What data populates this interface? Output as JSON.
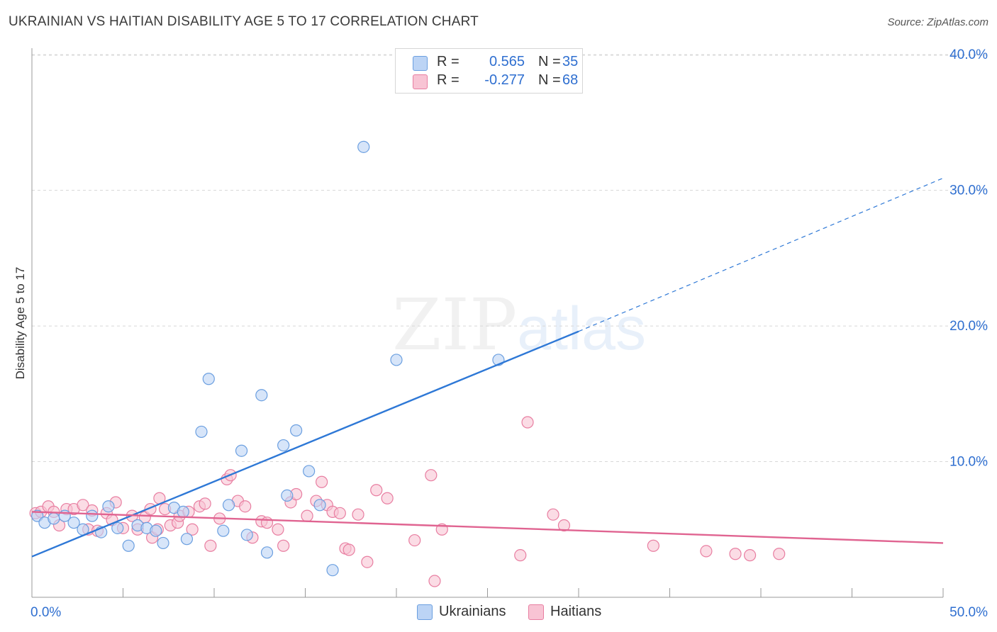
{
  "title": "UKRAINIAN VS HAITIAN DISABILITY AGE 5 TO 17 CORRELATION CHART",
  "source": "Source: ZipAtlas.com",
  "watermark": {
    "zip": "ZIP",
    "atlas": "atlas"
  },
  "legend": {
    "rows": [
      {
        "r_label": "R =",
        "r_value": "0.565",
        "n_label": "N =",
        "n_value": "35"
      },
      {
        "r_label": "R =",
        "r_value": "-0.277",
        "n_label": "N =",
        "n_value": "68"
      }
    ]
  },
  "colors": {
    "ukrainian_fill": "#bcd4f5",
    "ukrainian_stroke": "#6b9fe0",
    "ukrainian_line": "#2e78d6",
    "haitian_fill": "#f8c4d4",
    "haitian_stroke": "#e87ea1",
    "haitian_line": "#e06491",
    "text_blue": "#2f6fd0",
    "grid": "#d8d8d8"
  },
  "chart_data": {
    "type": "scatter",
    "title": "UKRAINIAN VS HAITIAN DISABILITY AGE 5 TO 17 CORRELATION CHART",
    "xlabel": "",
    "ylabel": "Disability Age 5 to 17",
    "xlim": [
      0,
      50
    ],
    "ylim": [
      0,
      41
    ],
    "x_tick_labels": [
      {
        "value": 0,
        "label": "0.0%"
      },
      {
        "value": 50,
        "label": "50.0%"
      }
    ],
    "y_tick_labels": [
      {
        "value": 10,
        "label": "10.0%"
      },
      {
        "value": 20,
        "label": "20.0%"
      },
      {
        "value": 30,
        "label": "30.0%"
      },
      {
        "value": 40,
        "label": "40.0%"
      }
    ],
    "series": [
      {
        "name": "Ukrainians",
        "r": 0.565,
        "n": 35,
        "trend": {
          "x0": 0,
          "y0": 3.0,
          "x1": 30,
          "y1": 19.6,
          "dashed_to_x": 50,
          "dashed_to_y": 30.9
        },
        "points": [
          [
            0.3,
            6.0
          ],
          [
            0.7,
            5.5
          ],
          [
            1.2,
            5.8
          ],
          [
            1.8,
            6.0
          ],
          [
            2.3,
            5.5
          ],
          [
            2.8,
            5.0
          ],
          [
            3.3,
            6.0
          ],
          [
            3.8,
            4.8
          ],
          [
            4.2,
            6.7
          ],
          [
            4.7,
            5.1
          ],
          [
            5.3,
            3.8
          ],
          [
            5.8,
            5.3
          ],
          [
            6.3,
            5.1
          ],
          [
            6.8,
            4.9
          ],
          [
            7.2,
            4.0
          ],
          [
            7.8,
            6.6
          ],
          [
            8.3,
            6.3
          ],
          [
            8.5,
            4.3
          ],
          [
            9.3,
            12.2
          ],
          [
            9.7,
            16.1
          ],
          [
            10.5,
            4.9
          ],
          [
            10.8,
            6.8
          ],
          [
            11.5,
            10.8
          ],
          [
            11.8,
            4.6
          ],
          [
            12.6,
            14.9
          ],
          [
            12.9,
            3.3
          ],
          [
            13.8,
            11.2
          ],
          [
            14.0,
            7.5
          ],
          [
            14.5,
            12.3
          ],
          [
            15.2,
            9.3
          ],
          [
            15.8,
            6.8
          ],
          [
            16.5,
            2.0
          ],
          [
            18.2,
            33.2
          ],
          [
            20.0,
            17.5
          ],
          [
            25.6,
            17.5
          ]
        ]
      },
      {
        "name": "Haitians",
        "r": -0.277,
        "n": 68,
        "trend": {
          "x0": 0,
          "y0": 6.3,
          "x1": 50,
          "y1": 4.0
        },
        "points": [
          [
            0.2,
            6.2
          ],
          [
            0.5,
            6.3
          ],
          [
            0.9,
            6.7
          ],
          [
            1.2,
            6.3
          ],
          [
            1.5,
            5.3
          ],
          [
            1.9,
            6.5
          ],
          [
            2.3,
            6.5
          ],
          [
            2.8,
            6.8
          ],
          [
            3.1,
            5.0
          ],
          [
            3.3,
            6.4
          ],
          [
            3.6,
            4.9
          ],
          [
            4.1,
            6.2
          ],
          [
            4.4,
            5.7
          ],
          [
            4.6,
            7.0
          ],
          [
            5.0,
            5.1
          ],
          [
            5.5,
            6.0
          ],
          [
            5.8,
            5.0
          ],
          [
            6.2,
            5.9
          ],
          [
            6.5,
            6.5
          ],
          [
            6.6,
            4.4
          ],
          [
            6.9,
            5.0
          ],
          [
            7.0,
            7.3
          ],
          [
            7.3,
            6.5
          ],
          [
            7.6,
            5.3
          ],
          [
            8.0,
            5.5
          ],
          [
            8.1,
            6.0
          ],
          [
            8.6,
            6.3
          ],
          [
            8.8,
            5.0
          ],
          [
            9.2,
            6.7
          ],
          [
            9.5,
            6.9
          ],
          [
            9.8,
            3.8
          ],
          [
            10.3,
            5.8
          ],
          [
            10.7,
            8.7
          ],
          [
            10.9,
            9.0
          ],
          [
            11.3,
            7.1
          ],
          [
            11.7,
            6.7
          ],
          [
            12.1,
            4.4
          ],
          [
            12.6,
            5.6
          ],
          [
            12.9,
            5.5
          ],
          [
            13.5,
            5.0
          ],
          [
            13.8,
            3.8
          ],
          [
            14.2,
            7.0
          ],
          [
            14.5,
            7.6
          ],
          [
            15.1,
            6.0
          ],
          [
            15.6,
            7.1
          ],
          [
            15.9,
            8.5
          ],
          [
            16.2,
            6.8
          ],
          [
            16.5,
            6.3
          ],
          [
            16.9,
            6.2
          ],
          [
            17.2,
            3.6
          ],
          [
            17.4,
            3.5
          ],
          [
            17.9,
            6.1
          ],
          [
            18.4,
            2.6
          ],
          [
            18.9,
            7.9
          ],
          [
            19.5,
            7.3
          ],
          [
            21.0,
            4.2
          ],
          [
            21.9,
            9.0
          ],
          [
            22.1,
            1.2
          ],
          [
            22.5,
            5.0
          ],
          [
            26.8,
            3.1
          ],
          [
            27.2,
            12.9
          ],
          [
            28.6,
            6.1
          ],
          [
            29.2,
            5.3
          ],
          [
            34.1,
            3.8
          ],
          [
            37.0,
            3.4
          ],
          [
            38.6,
            3.2
          ],
          [
            39.4,
            3.1
          ],
          [
            41.0,
            3.2
          ]
        ]
      }
    ]
  }
}
